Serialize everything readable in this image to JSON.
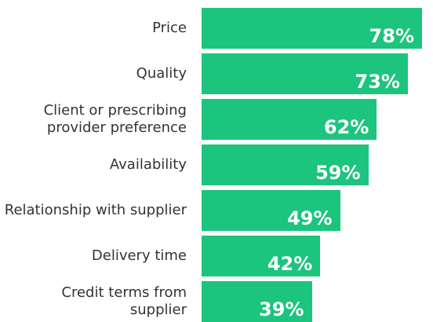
{
  "chart_data": {
    "type": "bar",
    "orientation": "horizontal",
    "categories": [
      "Price",
      "Quality",
      "Client or prescribing provider preference",
      "Availability",
      "Relationship with supplier",
      "Delivery time",
      "Credit terms from supplier"
    ],
    "values": [
      78,
      73,
      62,
      59,
      49,
      42,
      39
    ],
    "value_labels": [
      "78%",
      "73%",
      "62%",
      "59%",
      "49%",
      "42%",
      "39%"
    ],
    "color": "#1cc47e"
  }
}
